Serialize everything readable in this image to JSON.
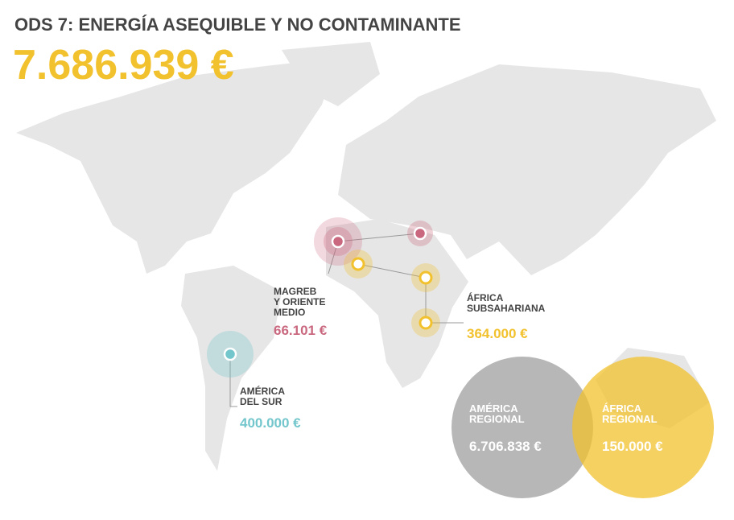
{
  "header": {
    "title": "ODS 7: ENERGÍA ASEQUIBLE Y NO CONTAMINANTE",
    "total": "7.686.939 €"
  },
  "regions": [
    {
      "name_lines": [
        "MAGREB",
        "Y ORIENTE",
        "MEDIO"
      ],
      "amount": "66.101 €"
    },
    {
      "name_lines": [
        "ÁFRICA",
        "SUBSAHARIANA"
      ],
      "amount": "364.000 €"
    },
    {
      "name_lines": [
        "AMÉRICA",
        "DEL SUR"
      ],
      "amount": "400.000 €"
    }
  ],
  "bubbles": [
    {
      "name_lines": [
        "AMÉRICA",
        "REGIONAL"
      ],
      "amount": "6.706.838 €"
    },
    {
      "name_lines": [
        "ÁFRICA",
        "REGIONAL"
      ],
      "amount": "150.000 €"
    }
  ]
}
